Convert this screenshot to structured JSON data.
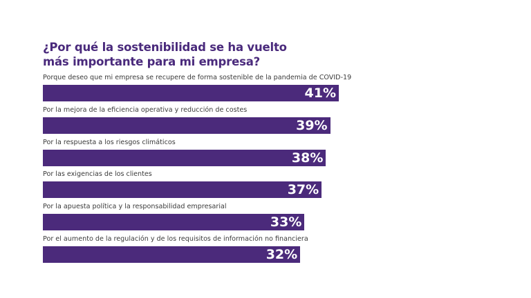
{
  "chart_data": {
    "type": "bar",
    "orientation": "horizontal",
    "title": [
      "¿Por qué la sostenibilidad se ha vuelto",
      "más importante para mi empresa?"
    ],
    "categories": [
      "Porque deseo que mi empresa se recupere de forma sostenible de la pandemia de COVID-19",
      "Por la mejora de la eficiencia operativa y reducción de costes",
      "Por la respuesta a los riesgos climáticos",
      "Por las exigencias de los clientes",
      "Por la apuesta política y la responsabilidad empresarial",
      "Por el aumento de la regulación y de los requisitos de información no financiera"
    ],
    "values": [
      41,
      39,
      38,
      37,
      33,
      32
    ],
    "value_labels": [
      "41%",
      "39%",
      "38%",
      "37%",
      "33%",
      "32%"
    ],
    "unit": "%",
    "bar_color": "#4b2a7b",
    "title_color": "#4a2a7c",
    "grid": false
  }
}
